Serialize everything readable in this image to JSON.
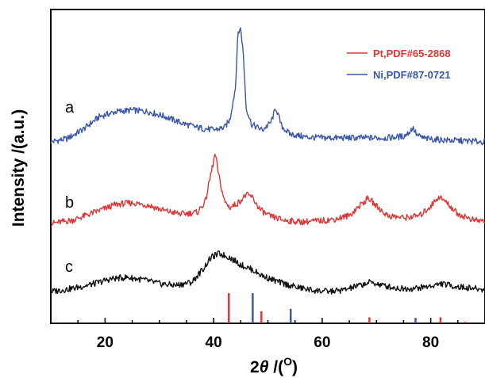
{
  "chart_data": {
    "type": "line",
    "xlabel": {
      "prefix": "2",
      "symbol": "θ",
      "unit_open": " /(",
      "unit_sup": "O",
      "unit_close": ")"
    },
    "ylabel": "Intensity /(a.u.)",
    "xlim": [
      10,
      90
    ],
    "xticks": [
      20,
      40,
      60,
      80
    ],
    "y_tick_labels": false,
    "grid": false,
    "series": [
      {
        "label": "a",
        "color": "#3a57a8",
        "baseline": 130,
        "x": [
          10,
          13,
          16,
          19,
          22,
          25,
          28,
          31,
          34,
          37,
          40,
          42,
          43,
          44,
          44.5,
          45,
          45.5,
          46,
          47,
          49,
          50.5,
          51.5,
          52.5,
          54,
          57,
          60,
          64,
          68,
          72,
          75,
          76,
          76.7,
          77.5,
          79,
          83,
          87,
          90
        ],
        "y": [
          2,
          6,
          18,
          34,
          40,
          42,
          40,
          34,
          26,
          20,
          17,
          20,
          30,
          70,
          140,
          145,
          110,
          45,
          24,
          17,
          26,
          45,
          22,
          12,
          8,
          7,
          7,
          7,
          7,
          9,
          14,
          20,
          10,
          6,
          4,
          3,
          2
        ]
      },
      {
        "label": "b",
        "color": "#e03535",
        "baseline": 127,
        "x": [
          10,
          14,
          18,
          22,
          25,
          28,
          31,
          34,
          37,
          38.5,
          39.5,
          40.3,
          41,
          42,
          43,
          44.5,
          46,
          47,
          48.5,
          50,
          53,
          56,
          59,
          62,
          65,
          67,
          68.5,
          70,
          72,
          75,
          78,
          80,
          81.5,
          83,
          85,
          88,
          90
        ],
        "y": [
          2,
          6,
          16,
          26,
          28,
          25,
          18,
          14,
          16,
          30,
          65,
          90,
          60,
          30,
          22,
          28,
          38,
          36,
          20,
          12,
          6,
          4,
          5,
          7,
          12,
          25,
          34,
          24,
          12,
          9,
          12,
          24,
          36,
          28,
          14,
          6,
          5
        ]
      },
      {
        "label": "c",
        "color": "#111111",
        "baseline": 40,
        "x": [
          10,
          14,
          18,
          21,
          24,
          27,
          30,
          33,
          36,
          38,
          39.5,
          41,
          43,
          45,
          47,
          49,
          52,
          55,
          58,
          61,
          64,
          67,
          69,
          71,
          74,
          77,
          80,
          82,
          85,
          88,
          90
        ],
        "y": [
          2,
          6,
          12,
          18,
          20,
          17,
          12,
          10,
          14,
          30,
          45,
          50,
          45,
          36,
          30,
          22,
          14,
          8,
          4,
          2,
          4,
          10,
          14,
          10,
          6,
          6,
          9,
          12,
          8,
          6,
          4
        ]
      }
    ],
    "reference_lines": [
      {
        "name": "Pt,PDF#65-2868",
        "color": "#e03535",
        "x": [
          42.8,
          48.8,
          68.7,
          81.8,
          86.3
        ],
        "intensity": [
          100,
          40,
          20,
          20,
          5
        ]
      },
      {
        "name": "Ni,PDF#87-0721",
        "color": "#3a57a8",
        "x": [
          47.2,
          54.2,
          77.2
        ],
        "intensity": [
          100,
          48,
          18
        ]
      }
    ],
    "legend": {
      "position": "top-right"
    }
  }
}
